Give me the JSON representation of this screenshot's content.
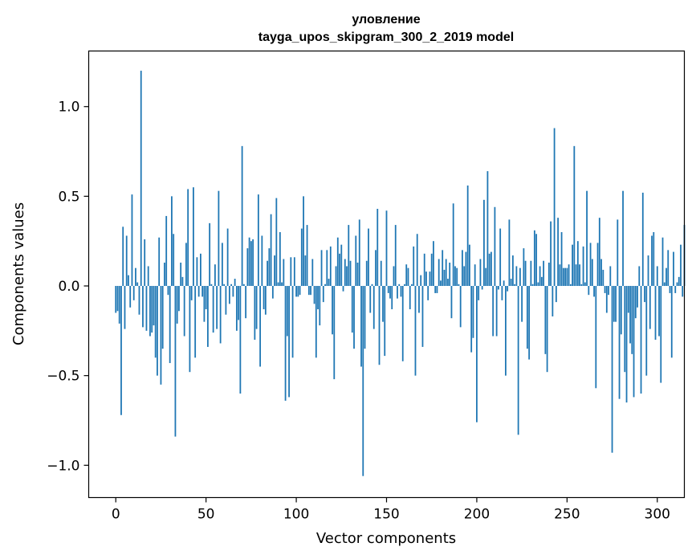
{
  "chart_data": {
    "type": "bar",
    "title": "уловление",
    "subtitle": "tayga_upos_skipgram_300_2_2019 model",
    "xlabel": "Vector components",
    "ylabel": "Components values",
    "xlim": [
      -15,
      315
    ],
    "ylim": [
      -1.18,
      1.31
    ],
    "xticks": [
      0,
      50,
      100,
      150,
      200,
      250,
      300
    ],
    "yticks": [
      -1.0,
      -0.5,
      0.0,
      0.5,
      1.0
    ],
    "ytick_labels": [
      "−1.0",
      "−0.5",
      "0.0",
      "0.5",
      "1.0"
    ],
    "grid": false,
    "color": "#1f77b4",
    "values": [
      -0.15,
      -0.14,
      -0.21,
      -0.72,
      0.33,
      -0.24,
      0.28,
      0.06,
      -0.12,
      0.51,
      -0.08,
      0.1,
      0.02,
      -0.16,
      1.2,
      -0.23,
      0.26,
      -0.25,
      0.11,
      -0.28,
      -0.26,
      -0.22,
      -0.4,
      -0.5,
      0.27,
      -0.55,
      -0.35,
      0.13,
      0.39,
      -0.05,
      -0.43,
      0.5,
      0.29,
      -0.84,
      -0.21,
      -0.14,
      0.13,
      0.05,
      -0.28,
      0.24,
      0.54,
      -0.48,
      -0.08,
      0.55,
      -0.4,
      0.16,
      -0.06,
      0.18,
      -0.06,
      -0.2,
      -0.13,
      -0.34,
      0.35,
      0.01,
      -0.26,
      0.12,
      -0.24,
      0.53,
      -0.32,
      0.24,
      0.01,
      -0.16,
      0.32,
      -0.1,
      0.01,
      -0.06,
      0.04,
      -0.25,
      -0.19,
      -0.6,
      0.78,
      0.01,
      -0.18,
      0.21,
      0.27,
      0.25,
      0.26,
      -0.3,
      -0.24,
      0.51,
      -0.45,
      0.28,
      -0.13,
      -0.16,
      0.14,
      0.21,
      0.4,
      -0.07,
      0.17,
      0.49,
      0.02,
      0.3,
      0.02,
      0.15,
      -0.64,
      -0.28,
      -0.62,
      0.16,
      -0.4,
      0.16,
      -0.06,
      -0.06,
      -0.05,
      0.32,
      0.5,
      0.17,
      0.34,
      -0.05,
      -0.05,
      0.15,
      -0.1,
      -0.4,
      -0.13,
      -0.22,
      0.2,
      -0.09,
      0.01,
      0.2,
      0.04,
      0.22,
      -0.27,
      -0.52,
      0.11,
      0.27,
      0.18,
      0.23,
      -0.03,
      0.15,
      0.11,
      0.34,
      0.14,
      -0.26,
      -0.35,
      0.28,
      0.13,
      0.37,
      -0.45,
      -1.06,
      -0.35,
      0.14,
      0.32,
      -0.15,
      0.01,
      -0.24,
      0.2,
      0.43,
      -0.44,
      0.14,
      -0.2,
      -0.39,
      0.42,
      -0.04,
      -0.07,
      -0.13,
      0.11,
      0.34,
      -0.07,
      0.01,
      -0.06,
      -0.42,
      0.01,
      0.12,
      0.1,
      -0.13,
      0.01,
      0.22,
      -0.5,
      0.29,
      -0.15,
      0.06,
      -0.34,
      0.18,
      0.08,
      -0.08,
      0.08,
      0.18,
      0.25,
      -0.04,
      -0.04,
      0.15,
      0.03,
      0.2,
      0.09,
      0.15,
      0.04,
      0.13,
      -0.18,
      0.46,
      0.11,
      0.1,
      0.01,
      -0.23,
      0.2,
      0.11,
      0.19,
      0.56,
      0.23,
      -0.37,
      -0.29,
      0.12,
      -0.76,
      -0.08,
      0.15,
      -0.02,
      0.48,
      0.1,
      0.64,
      0.18,
      0.19,
      -0.28,
      0.44,
      -0.28,
      -0.02,
      0.32,
      -0.08,
      0.03,
      -0.5,
      -0.03,
      0.37,
      0.04,
      0.17,
      0.01,
      0.11,
      -0.83,
      0.1,
      -0.2,
      0.21,
      0.14,
      -0.35,
      -0.41,
      0.14,
      0.01,
      0.31,
      0.29,
      0.02,
      0.11,
      0.05,
      0.14,
      -0.38,
      -0.48,
      0.13,
      0.36,
      -0.17,
      0.88,
      -0.09,
      0.38,
      0.12,
      0.3,
      0.1,
      0.1,
      0.1,
      0.12,
      0.01,
      0.23,
      0.78,
      0.12,
      0.25,
      0.12,
      0.01,
      0.22,
      0.02,
      0.53,
      -0.05,
      0.24,
      0.15,
      -0.06,
      -0.57,
      0.24,
      0.38,
      0.15,
      0.09,
      -0.04,
      -0.15,
      -0.05,
      0.11,
      -0.93,
      -0.2,
      -0.2,
      0.37,
      -0.63,
      -0.27,
      0.53,
      -0.48,
      -0.65,
      -0.15,
      -0.32,
      -0.38,
      -0.62,
      -0.18,
      -0.12,
      0.11,
      -0.6,
      0.52,
      -0.09,
      -0.5,
      0.17,
      -0.24,
      0.28,
      0.3,
      -0.3,
      0.11,
      -0.28,
      -0.54,
      0.27,
      0.02,
      0.1,
      0.2,
      -0.04,
      -0.4,
      0.19,
      -0.04,
      0.02,
      0.05,
      0.23,
      -0.06,
      0.34
    ]
  }
}
